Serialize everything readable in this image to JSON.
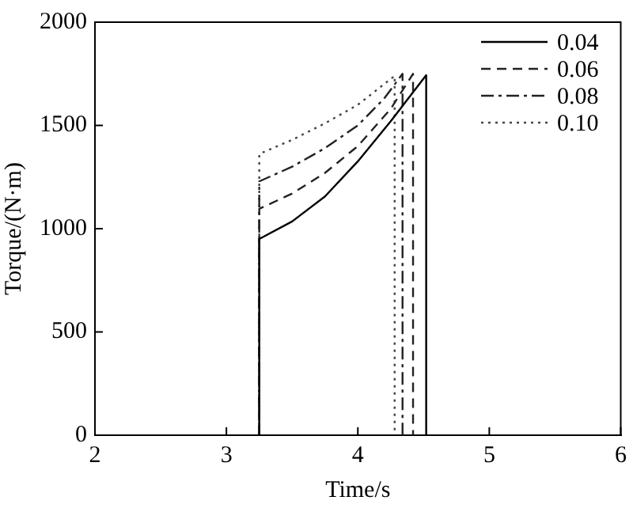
{
  "chart_data": {
    "type": "line",
    "xlabel": "Time/s",
    "ylabel": "Torque/(N·m)",
    "xlim": [
      2,
      6
    ],
    "xticks": [
      2,
      3,
      4,
      5,
      6
    ],
    "ylim": [
      0,
      2000
    ],
    "yticks": [
      0,
      500,
      1000,
      1500,
      2000
    ],
    "grid": false,
    "legend": "top right",
    "marker": "none",
    "series": [
      {
        "name": "0.04",
        "color": "#000000",
        "line_style": "solid",
        "x": [
          3.25,
          3.25,
          3.5,
          3.75,
          4.0,
          4.25,
          4.52,
          4.52
        ],
        "values": [
          0,
          950,
          1035,
          1156,
          1326,
          1520,
          1743,
          0
        ]
      },
      {
        "name": "0.06",
        "color": "#222222",
        "line_style": "dashed",
        "x": [
          3.25,
          3.25,
          3.5,
          3.75,
          4.0,
          4.25,
          4.42,
          4.42
        ],
        "values": [
          0,
          1096,
          1170,
          1270,
          1400,
          1580,
          1750,
          0
        ]
      },
      {
        "name": "0.08",
        "color": "#222222",
        "line_style": "dashdot",
        "x": [
          3.25,
          3.25,
          3.5,
          3.75,
          4.0,
          4.2,
          4.34,
          4.34
        ],
        "values": [
          0,
          1229,
          1300,
          1390,
          1500,
          1630,
          1750,
          0
        ]
      },
      {
        "name": "0.10",
        "color": "#444444",
        "line_style": "dotted",
        "x": [
          3.25,
          3.25,
          3.5,
          3.75,
          4.0,
          4.28,
          4.28
        ],
        "values": [
          0,
          1362,
          1430,
          1510,
          1600,
          1740,
          0
        ]
      }
    ]
  }
}
